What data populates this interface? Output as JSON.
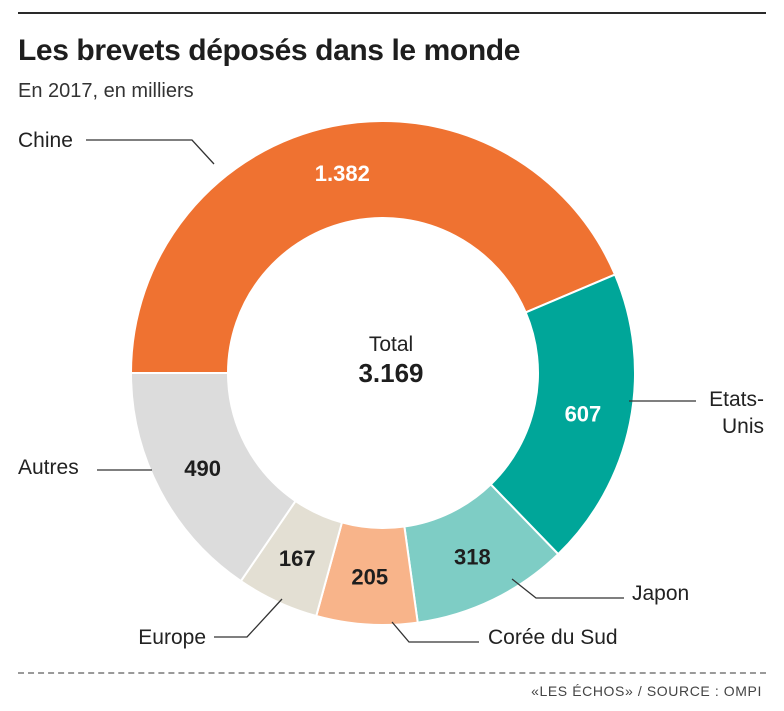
{
  "header": {
    "title": "Les brevets déposés dans le monde",
    "subtitle": "En 2017, en milliers"
  },
  "footer": {
    "source": "«LES ÉCHOS» / SOURCE : OMPI"
  },
  "chart_data": {
    "type": "pie",
    "donut": true,
    "title": "Les brevets déposés dans le monde",
    "subtitle": "En 2017, en milliers",
    "unit": "milliers",
    "center_label": "Total",
    "total": 3169,
    "total_label": "3.169",
    "categories": [
      "Chine",
      "Etats-Unis",
      "Japon",
      "Corée du Sud",
      "Europe",
      "Autres"
    ],
    "values": [
      1382,
      607,
      318,
      205,
      167,
      490
    ],
    "value_labels": [
      "1.382",
      "607",
      "318",
      "205",
      "167",
      "490"
    ],
    "category_lines": [
      [
        "Chine"
      ],
      [
        "Etats-",
        "Unis"
      ],
      [
        "Japon"
      ],
      [
        "Corée du Sud"
      ],
      [
        "Europe"
      ],
      [
        "Autres"
      ]
    ],
    "colors": [
      "#ef7231",
      "#00a699",
      "#7ecdc5",
      "#f8b48a",
      "#e3dfd3",
      "#dcdcdc"
    ],
    "value_label_colors": [
      "#ffffff",
      "#ffffff",
      "#1e1e1e",
      "#1e1e1e",
      "#1e1e1e",
      "#1e1e1e"
    ],
    "legend": "direct-labels",
    "start_direction": "left"
  }
}
